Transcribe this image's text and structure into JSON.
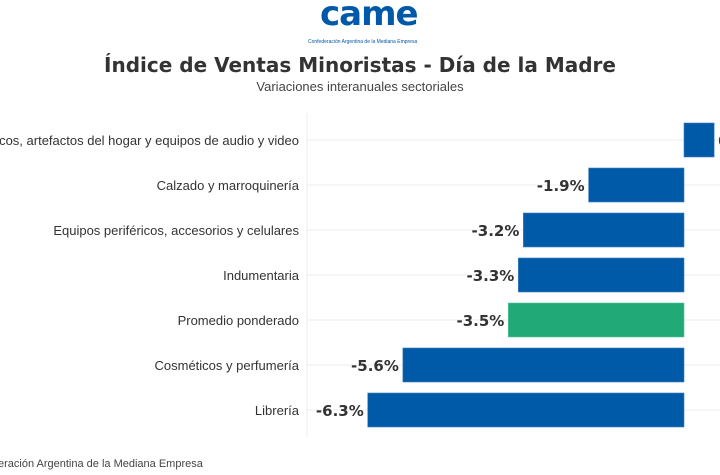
{
  "header": {
    "logo_text": "came",
    "logo_subtitle": "Confederación Argentina de la Mediana Empresa",
    "title": "Índice de Ventas Minoristas - Día de la Madre",
    "subtitle": "Variaciones interanuales sectoriales"
  },
  "footer": {
    "credit": "eración Argentina de la Mediana Empresa"
  },
  "colors": {
    "bar": "#005aa7",
    "highlight": "#21a977",
    "grid": "#eeeeee",
    "text": "#333333"
  },
  "chart_data": {
    "type": "bar",
    "orientation": "horizontal",
    "title": "Índice de Ventas Minoristas - Día de la Madre",
    "subtitle": "Variaciones interanuales sectoriales",
    "xlabel": "",
    "ylabel": "",
    "unit": "%",
    "categories": [
      "ésticos, artefactos del hogar y equipos de audio y video",
      "Calzado y marroquinería",
      "Equipos periféricos, accesorios y celulares",
      "Indumentaria",
      "Promedio ponderado",
      "Cosméticos y perfumería",
      "Librería"
    ],
    "values": [
      0.6,
      -1.9,
      -3.2,
      -3.3,
      -3.5,
      -5.6,
      -6.3
    ],
    "data_labels": [
      "",
      "-1.9%",
      "-3.2%",
      "-3.3%",
      "-3.5%",
      "-5.6%",
      "-6.3%"
    ],
    "highlight_index": 4,
    "xlim": [
      -7.5,
      0.7
    ],
    "grid": true,
    "legend": "none"
  }
}
